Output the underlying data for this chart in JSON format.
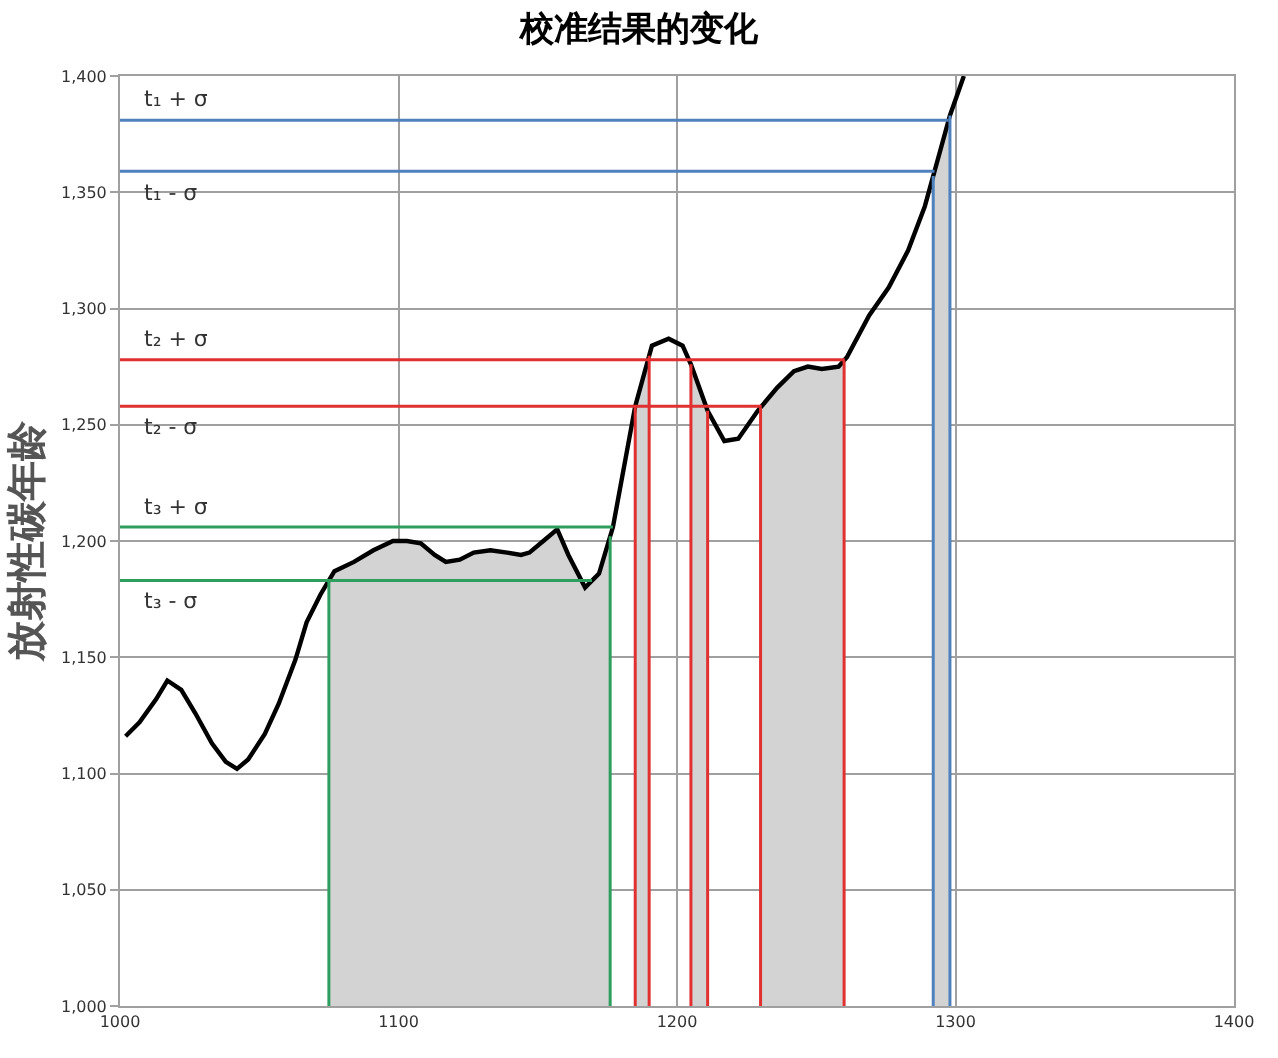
{
  "chart_data": {
    "type": "line",
    "title": "校准结果的变化",
    "ylabel": "放射性碳年龄",
    "x": [
      1002,
      1007,
      1013,
      1017,
      1022,
      1027,
      1033,
      1038,
      1042,
      1046,
      1052,
      1057,
      1063,
      1067,
      1072,
      1077,
      1084,
      1091,
      1098,
      1103,
      1108,
      1113,
      1117,
      1122,
      1127,
      1133,
      1139,
      1144,
      1147,
      1152,
      1157,
      1161,
      1167,
      1172,
      1177,
      1185,
      1191,
      1197,
      1202,
      1205,
      1211,
      1217,
      1222,
      1229,
      1236,
      1242,
      1247,
      1252,
      1258,
      1261,
      1269,
      1276,
      1283,
      1289,
      1295,
      1298,
      1303
    ],
    "series": [
      {
        "color": "#000000",
        "values": [
          1116,
          1122,
          1132,
          1140,
          1136,
          1126,
          1113,
          1105,
          1102,
          1106,
          1117,
          1130,
          1149,
          1165,
          1177,
          1187,
          1191,
          1196,
          1200,
          1200,
          1199,
          1194,
          1191,
          1192,
          1195,
          1196,
          1195,
          1194,
          1195,
          1200,
          1205,
          1194,
          1180,
          1186,
          1206,
          1258,
          1284,
          1287,
          1284,
          1276,
          1256,
          1243,
          1244,
          1256,
          1266,
          1273,
          1275,
          1274,
          1275,
          1279,
          1297,
          1309,
          1325,
          1344,
          1370,
          1383,
          1400
        ]
      }
    ],
    "xlim": [
      1000,
      1400
    ],
    "xticks": [
      1000,
      1100,
      1200,
      1300,
      1400
    ],
    "ylim": [
      1000,
      1400
    ],
    "yticks": [
      {
        "value": 1000,
        "label": "1,000"
      },
      {
        "value": 1050,
        "label": "1,050"
      },
      {
        "value": 1100,
        "label": "1,100"
      },
      {
        "value": 1150,
        "label": "1,150"
      },
      {
        "value": 1200,
        "label": "1,200"
      },
      {
        "value": 1250,
        "label": "1,250"
      },
      {
        "value": 1300,
        "label": "1,300"
      },
      {
        "value": 1350,
        "label": "1,350"
      },
      {
        "value": 1400,
        "label": "1,400"
      }
    ],
    "grid": true,
    "marker": "none",
    "line_style": "solid",
    "ref_lines": [
      {
        "axis": "y",
        "value": 1381,
        "label": "t₁ + σ",
        "color": "#4f81bd"
      },
      {
        "axis": "y",
        "value": 1359,
        "label": "t₁ - σ",
        "color": "#4f81bd"
      },
      {
        "axis": "y",
        "value": 1278,
        "label": "t₂ + σ",
        "color": "#e03030"
      },
      {
        "axis": "y",
        "value": 1258,
        "label": "t₂ - σ",
        "color": "#e03030"
      },
      {
        "axis": "y",
        "value": 1206,
        "label": "t₃ + σ",
        "color": "#2e9e5e"
      },
      {
        "axis": "y",
        "value": 1183,
        "label": "t₃ - σ",
        "color": "#2e9e5e"
      },
      {
        "axis": "x",
        "value": 1075,
        "color": "#2e9e5e"
      },
      {
        "axis": "x",
        "value": 1176,
        "color": "#2e9e5e"
      },
      {
        "axis": "x",
        "value": 1185,
        "color": "#e03030"
      },
      {
        "axis": "x",
        "value": 1190,
        "color": "#e03030"
      },
      {
        "axis": "x",
        "value": 1205,
        "color": "#e03030"
      },
      {
        "axis": "x",
        "value": 1211,
        "color": "#e03030"
      },
      {
        "axis": "x",
        "value": 1230,
        "color": "#e03030"
      },
      {
        "axis": "x",
        "value": 1260,
        "color": "#e03030"
      },
      {
        "axis": "x",
        "value": 1292,
        "color": "#4f81bd"
      },
      {
        "axis": "x",
        "value": 1298,
        "color": "#4f81bd"
      }
    ],
    "bands": [
      {
        "axis": "x",
        "from": 1075,
        "to": 1176,
        "color": "#d3d3d3"
      },
      {
        "axis": "x",
        "from": 1185,
        "to": 1190,
        "color": "#d3d3d3"
      },
      {
        "axis": "x",
        "from": 1205,
        "to": 1211,
        "color": "#d3d3d3"
      },
      {
        "axis": "x",
        "from": 1230,
        "to": 1260,
        "color": "#d3d3d3"
      },
      {
        "axis": "x",
        "from": 1292,
        "to": 1298,
        "color": "#d3d3d3"
      }
    ]
  }
}
